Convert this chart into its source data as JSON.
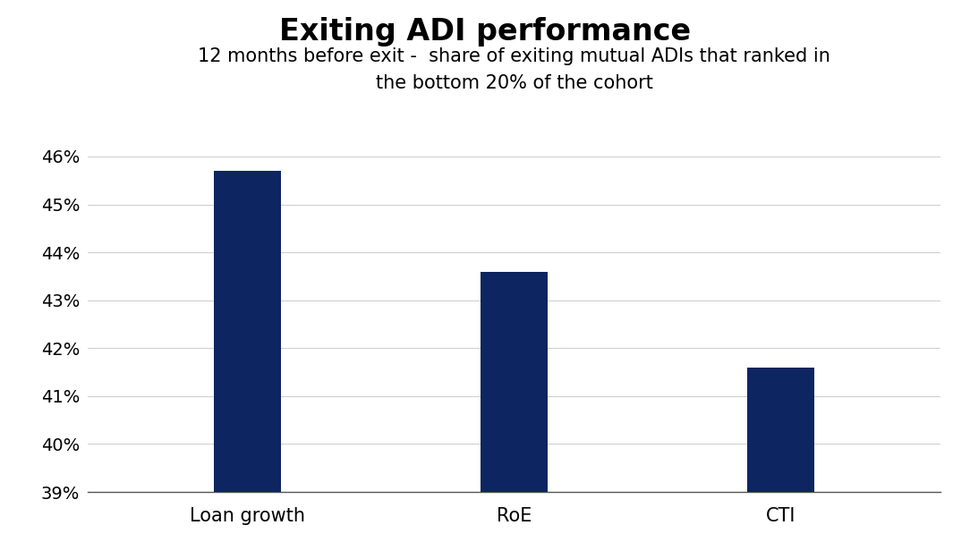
{
  "title": "Exiting ADI performance",
  "subtitle": "12 months before exit -  share of exiting mutual ADIs that ranked in\nthe bottom 20% of the cohort",
  "categories": [
    "Loan growth",
    "RoE",
    "CTI"
  ],
  "values": [
    0.457,
    0.436,
    0.416
  ],
  "bar_color": "#0d2560",
  "ylim": [
    0.39,
    0.46
  ],
  "yticks": [
    0.39,
    0.4,
    0.41,
    0.42,
    0.43,
    0.44,
    0.45,
    0.46
  ],
  "ytick_labels": [
    "39%",
    "40%",
    "41%",
    "42%",
    "43%",
    "44%",
    "45%",
    "46%"
  ],
  "background_color": "#ffffff",
  "title_fontsize": 24,
  "subtitle_fontsize": 15,
  "tick_fontsize": 14,
  "xtick_fontsize": 15,
  "grid_color": "#d0d0d0",
  "bar_width": 0.25
}
